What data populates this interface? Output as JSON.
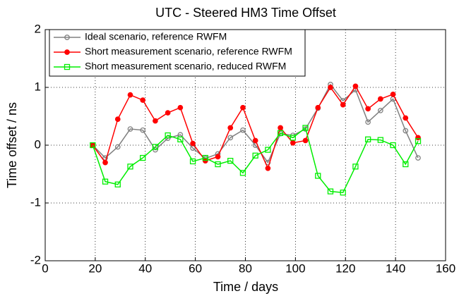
{
  "chart_data": {
    "type": "line",
    "title": "UTC - Steered HM3  Time Offset",
    "x_label": "Time / days",
    "y_label": "Time offset / ns",
    "x": [
      19,
      24,
      29,
      34,
      39,
      44,
      49,
      54,
      59,
      64,
      69,
      74,
      79,
      84,
      89,
      94,
      99,
      104,
      109,
      114,
      119,
      124,
      129,
      134,
      139,
      144,
      149
    ],
    "series": [
      {
        "name": "Ideal scenario, reference RWFM",
        "color": "#808080",
        "marker": "circle",
        "marker_filled": false,
        "values": [
          0,
          -0.22,
          -0.03,
          0.28,
          0.26,
          -0.08,
          0.12,
          0.18,
          -0.05,
          -0.23,
          -0.15,
          0.13,
          0.26,
          0.0,
          -0.3,
          0.2,
          0.17,
          0.28,
          0.64,
          1.05,
          0.77,
          0.96,
          0.4,
          0.6,
          0.8,
          0.25,
          -0.22
        ]
      },
      {
        "name": "Short measurement scenario, reference RWFM",
        "color": "#ff0000",
        "marker": "circle",
        "marker_filled": true,
        "values": [
          0,
          -0.3,
          0.45,
          0.87,
          0.78,
          0.42,
          0.56,
          0.65,
          0.03,
          -0.27,
          -0.2,
          0.3,
          0.65,
          0.08,
          -0.4,
          0.3,
          0.04,
          0.08,
          0.65,
          1.0,
          0.7,
          1.02,
          0.63,
          0.8,
          0.88,
          0.47,
          0.13
        ]
      },
      {
        "name": "Short measurement scenario, reduced RWFM",
        "color": "#00ee00",
        "marker": "square",
        "marker_filled": false,
        "values": [
          0,
          -0.63,
          -0.68,
          -0.37,
          -0.22,
          -0.03,
          0.17,
          0.1,
          -0.28,
          -0.22,
          -0.33,
          -0.27,
          -0.48,
          -0.18,
          -0.08,
          0.21,
          0.13,
          0.3,
          -0.53,
          -0.8,
          -0.82,
          -0.37,
          0.1,
          0.09,
          0.0,
          -0.33,
          0.07
        ]
      }
    ],
    "xlim": [
      0,
      160
    ],
    "xticks": [
      0,
      20,
      40,
      60,
      80,
      100,
      120,
      140,
      160
    ],
    "ylim": [
      -2,
      2
    ],
    "yticks": [
      -2,
      -1,
      0,
      1,
      2
    ],
    "grid": true,
    "legend": "upper left"
  }
}
